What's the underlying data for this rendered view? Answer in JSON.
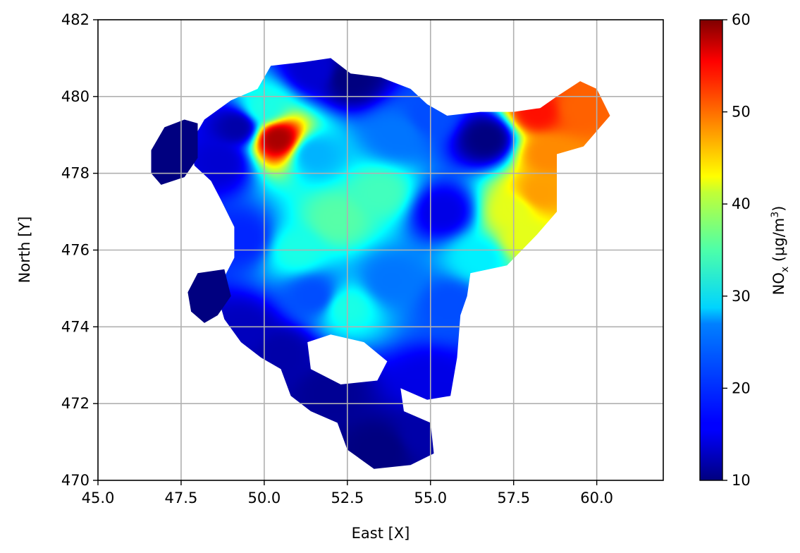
{
  "chart_data": {
    "type": "heatmap",
    "subtype": "scatter-interpolated-map",
    "xlabel": "East [X]",
    "ylabel": "North [Y]",
    "xlim": [
      45.0,
      62.0
    ],
    "ylim": [
      470,
      482
    ],
    "xticks": [
      "45.0",
      "47.5",
      "50.0",
      "52.5",
      "55.0",
      "57.5",
      "60.0"
    ],
    "xtick_values": [
      45.0,
      47.5,
      50.0,
      52.5,
      55.0,
      57.5,
      60.0
    ],
    "yticks": [
      "470",
      "472",
      "474",
      "476",
      "478",
      "480",
      "482"
    ],
    "ytick_values": [
      470,
      472,
      474,
      476,
      478,
      480,
      482
    ],
    "grid": true,
    "colormap": "jet",
    "colorbar": {
      "label_main": "NO",
      "label_sub": "x",
      "label_unit_pre": " (μg/m",
      "label_unit_sup": "3",
      "label_unit_post": ")",
      "range": [
        10,
        60
      ],
      "ticks": [
        "10",
        "20",
        "30",
        "40",
        "50",
        "60"
      ],
      "tick_values": [
        10,
        20,
        30,
        40,
        50,
        60
      ]
    },
    "region_outline": [
      [
        48.2,
        479.4
      ],
      [
        49.0,
        479.9
      ],
      [
        49.8,
        480.2
      ],
      [
        50.2,
        480.8
      ],
      [
        51.2,
        480.9
      ],
      [
        52.0,
        481.0
      ],
      [
        52.6,
        480.6
      ],
      [
        53.5,
        480.5
      ],
      [
        54.4,
        480.2
      ],
      [
        54.9,
        479.8
      ],
      [
        55.5,
        479.5
      ],
      [
        56.5,
        479.6
      ],
      [
        57.5,
        479.6
      ],
      [
        58.3,
        479.7
      ],
      [
        58.8,
        480.0
      ],
      [
        59.5,
        480.4
      ],
      [
        60.0,
        480.2
      ],
      [
        60.4,
        479.5
      ],
      [
        59.6,
        478.7
      ],
      [
        58.8,
        478.5
      ],
      [
        58.8,
        477.0
      ],
      [
        58.2,
        476.4
      ],
      [
        57.3,
        475.6
      ],
      [
        56.2,
        475.4
      ],
      [
        56.1,
        474.8
      ],
      [
        55.9,
        474.3
      ],
      [
        55.8,
        473.2
      ],
      [
        55.6,
        472.2
      ],
      [
        54.9,
        472.1
      ],
      [
        54.1,
        472.4
      ],
      [
        54.2,
        471.8
      ],
      [
        55.0,
        471.5
      ],
      [
        55.1,
        470.7
      ],
      [
        54.4,
        470.4
      ],
      [
        53.3,
        470.3
      ],
      [
        52.5,
        470.8
      ],
      [
        52.2,
        471.5
      ],
      [
        51.4,
        471.8
      ],
      [
        50.8,
        472.2
      ],
      [
        50.5,
        472.9
      ],
      [
        49.9,
        473.2
      ],
      [
        49.3,
        473.6
      ],
      [
        48.8,
        474.2
      ],
      [
        48.6,
        474.8
      ],
      [
        48.8,
        475.3
      ],
      [
        49.1,
        475.8
      ],
      [
        49.1,
        476.6
      ],
      [
        48.7,
        477.3
      ],
      [
        48.4,
        477.8
      ],
      [
        47.9,
        478.2
      ],
      [
        47.8,
        478.8
      ]
    ],
    "islands": [
      {
        "outline": [
          [
            46.6,
            478.6
          ],
          [
            47.0,
            479.2
          ],
          [
            47.6,
            479.4
          ],
          [
            48.0,
            479.3
          ],
          [
            48.0,
            478.4
          ],
          [
            47.6,
            477.9
          ],
          [
            46.9,
            477.7
          ],
          [
            46.6,
            478.0
          ]
        ],
        "value": 10
      },
      {
        "outline": [
          [
            47.7,
            474.9
          ],
          [
            48.0,
            475.4
          ],
          [
            48.8,
            475.5
          ],
          [
            49.0,
            474.8
          ],
          [
            48.6,
            474.3
          ],
          [
            48.2,
            474.1
          ],
          [
            47.8,
            474.4
          ]
        ],
        "value": 10
      }
    ],
    "holes": [
      [
        [
          51.3,
          473.6
        ],
        [
          52.0,
          473.8
        ],
        [
          53.0,
          473.6
        ],
        [
          53.7,
          473.1
        ],
        [
          53.4,
          472.6
        ],
        [
          52.3,
          472.5
        ],
        [
          51.4,
          472.9
        ]
      ]
    ],
    "field_points": [
      {
        "x": 52.2,
        "y": 476.8,
        "value": 33
      },
      {
        "x": 51.0,
        "y": 476.0,
        "value": 30
      },
      {
        "x": 53.5,
        "y": 477.5,
        "value": 32
      },
      {
        "x": 52.5,
        "y": 474.5,
        "value": 30
      },
      {
        "x": 50.4,
        "y": 478.9,
        "value": 58
      },
      {
        "x": 50.0,
        "y": 479.7,
        "value": 30
      },
      {
        "x": 51.5,
        "y": 478.5,
        "value": 25
      },
      {
        "x": 54.0,
        "y": 479.0,
        "value": 22
      },
      {
        "x": 55.4,
        "y": 477.0,
        "value": 15
      },
      {
        "x": 57.5,
        "y": 477.0,
        "value": 40
      },
      {
        "x": 58.3,
        "y": 477.5,
        "value": 46
      },
      {
        "x": 58.2,
        "y": 479.6,
        "value": 53
      },
      {
        "x": 59.5,
        "y": 479.7,
        "value": 49
      },
      {
        "x": 58.5,
        "y": 478.5,
        "value": 47
      },
      {
        "x": 57.8,
        "y": 476.3,
        "value": 40
      },
      {
        "x": 56.7,
        "y": 478.9,
        "value": 10
      },
      {
        "x": 52.6,
        "y": 480.5,
        "value": 10
      },
      {
        "x": 51.5,
        "y": 480.7,
        "value": 14
      },
      {
        "x": 49.2,
        "y": 479.2,
        "value": 12
      },
      {
        "x": 48.7,
        "y": 478.3,
        "value": 14
      },
      {
        "x": 49.4,
        "y": 476.3,
        "value": 18
      },
      {
        "x": 49.4,
        "y": 473.9,
        "value": 13
      },
      {
        "x": 50.5,
        "y": 473.3,
        "value": 12
      },
      {
        "x": 52.0,
        "y": 472.3,
        "value": 11
      },
      {
        "x": 53.5,
        "y": 470.8,
        "value": 10
      },
      {
        "x": 54.8,
        "y": 471.2,
        "value": 12
      },
      {
        "x": 55.0,
        "y": 472.5,
        "value": 15
      },
      {
        "x": 55.6,
        "y": 474.6,
        "value": 20
      },
      {
        "x": 53.8,
        "y": 475.2,
        "value": 22
      },
      {
        "x": 51.5,
        "y": 474.8,
        "value": 20
      },
      {
        "x": 56.5,
        "y": 475.8,
        "value": 28
      },
      {
        "x": 55.0,
        "y": 479.5,
        "value": 20
      }
    ]
  }
}
